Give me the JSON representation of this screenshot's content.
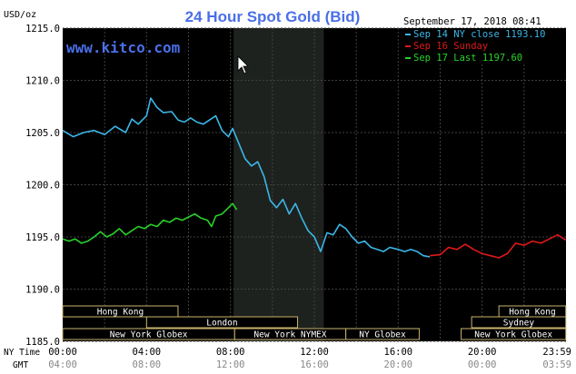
{
  "chart_data": {
    "type": "line",
    "title": "24 Hour Spot Gold (Bid)",
    "watermark": "www.kitco.com",
    "ylabel": "USD/oz",
    "date_label": "September 17, 2018 08:41",
    "ylim": [
      1185,
      1215
    ],
    "yticks": [
      "1215.0",
      "1210.0",
      "1205.0",
      "1200.0",
      "1195.0",
      "1190.0",
      "1185.0"
    ],
    "xlim": [
      0,
      24
    ],
    "x_label_ny": "NY Time",
    "x_label_gmt": "GMT",
    "x_ticks_ny": [
      "00:00",
      "04:00",
      "08:00",
      "12:00",
      "16:00",
      "20:00",
      "23:59"
    ],
    "x_ticks_gmt": [
      "04:00",
      "08:00",
      "12:00",
      "16:00",
      "20:00",
      "00:00",
      "03:59"
    ],
    "grid": true,
    "legend_position": "top-right",
    "colors": {
      "background": "#000000",
      "grid": "#404040",
      "axis_text": "#ffffff",
      "title": "#4a6fe8",
      "shade": "#1e221e",
      "legend_bg": "#000000",
      "band_fill": "#000000",
      "band_border": "#c8b46e",
      "band_text": "#ffffff"
    },
    "session_shade": {
      "start": 8.15,
      "end": 12.45
    },
    "series": [
      {
        "name": "Sep 14 NY close 1193.10",
        "color": "#3cb6e8",
        "x": [
          0.0,
          0.5,
          1.0,
          1.5,
          2.0,
          2.5,
          3.0,
          3.3,
          3.6,
          4.0,
          4.2,
          4.5,
          4.8,
          5.2,
          5.5,
          5.8,
          6.1,
          6.4,
          6.7,
          7.0,
          7.3,
          7.6,
          7.9,
          8.1,
          8.35,
          8.7,
          9.0,
          9.3,
          9.6,
          9.9,
          10.2,
          10.5,
          10.8,
          11.1,
          11.4,
          11.7,
          12.0,
          12.3,
          12.6,
          12.9,
          13.2,
          13.5,
          13.8,
          14.1,
          14.4,
          14.7,
          15.0,
          15.3,
          15.6,
          16.0,
          16.3,
          16.6,
          16.9,
          17.2,
          17.5
        ],
        "y": [
          1205.2,
          1204.6,
          1205.0,
          1205.2,
          1204.8,
          1205.6,
          1205.0,
          1206.3,
          1205.8,
          1206.6,
          1208.3,
          1207.4,
          1206.9,
          1207.0,
          1206.2,
          1206.0,
          1206.4,
          1206.0,
          1205.8,
          1206.2,
          1206.6,
          1205.2,
          1204.6,
          1205.4,
          1204.2,
          1202.5,
          1201.8,
          1202.2,
          1200.8,
          1198.5,
          1197.8,
          1198.6,
          1197.2,
          1198.2,
          1196.8,
          1195.6,
          1195.0,
          1193.6,
          1195.4,
          1195.2,
          1196.2,
          1195.8,
          1195.0,
          1194.4,
          1194.6,
          1194.0,
          1193.8,
          1193.6,
          1194.0,
          1193.8,
          1193.6,
          1193.8,
          1193.6,
          1193.2,
          1193.1
        ]
      },
      {
        "name": "Sep 16 Sunday",
        "color": "#e01818",
        "x": [
          17.5,
          18.0,
          18.4,
          18.8,
          19.2,
          19.6,
          20.0,
          20.4,
          20.8,
          21.2,
          21.6,
          22.0,
          22.4,
          22.8,
          23.2,
          23.6,
          23.99
        ],
        "y": [
          1193.2,
          1193.3,
          1194.0,
          1193.8,
          1194.3,
          1193.8,
          1193.4,
          1193.2,
          1193.0,
          1193.4,
          1194.4,
          1194.2,
          1194.6,
          1194.4,
          1194.8,
          1195.2,
          1194.7
        ]
      },
      {
        "name": "Sep 17 Last 1197.60",
        "color": "#28d228",
        "x": [
          0.0,
          0.3,
          0.6,
          0.9,
          1.2,
          1.5,
          1.8,
          2.1,
          2.4,
          2.7,
          3.0,
          3.3,
          3.6,
          3.9,
          4.2,
          4.5,
          4.8,
          5.1,
          5.4,
          5.7,
          6.0,
          6.3,
          6.6,
          6.9,
          7.1,
          7.3,
          7.6,
          7.9,
          8.1,
          8.3
        ],
        "y": [
          1194.8,
          1194.6,
          1194.8,
          1194.4,
          1194.6,
          1195.0,
          1195.5,
          1195.0,
          1195.3,
          1195.8,
          1195.2,
          1195.6,
          1196.0,
          1195.8,
          1196.2,
          1196.0,
          1196.6,
          1196.4,
          1196.8,
          1196.6,
          1196.9,
          1197.2,
          1196.8,
          1196.6,
          1196.0,
          1197.0,
          1197.2,
          1197.8,
          1198.2,
          1197.6
        ]
      }
    ],
    "market_bands": [
      {
        "label": "Hong Kong",
        "start": 0.0,
        "end": 5.5,
        "row": 0
      },
      {
        "label": "Hong Kong",
        "start": 20.8,
        "end": 23.99,
        "row": 0
      },
      {
        "label": "London",
        "start": 4.0,
        "end": 11.2,
        "row": 1
      },
      {
        "label": "Sydney",
        "start": 19.5,
        "end": 23.99,
        "row": 1
      },
      {
        "label": "New York Globex",
        "start": 0.0,
        "end": 8.2,
        "row": 2
      },
      {
        "label": "New York NYMEX",
        "start": 8.2,
        "end": 13.5,
        "row": 2
      },
      {
        "label": "NY Globex",
        "start": 13.5,
        "end": 17.0,
        "row": 2
      },
      {
        "label": "New York Globex",
        "start": 19.0,
        "end": 23.99,
        "row": 2
      }
    ]
  }
}
